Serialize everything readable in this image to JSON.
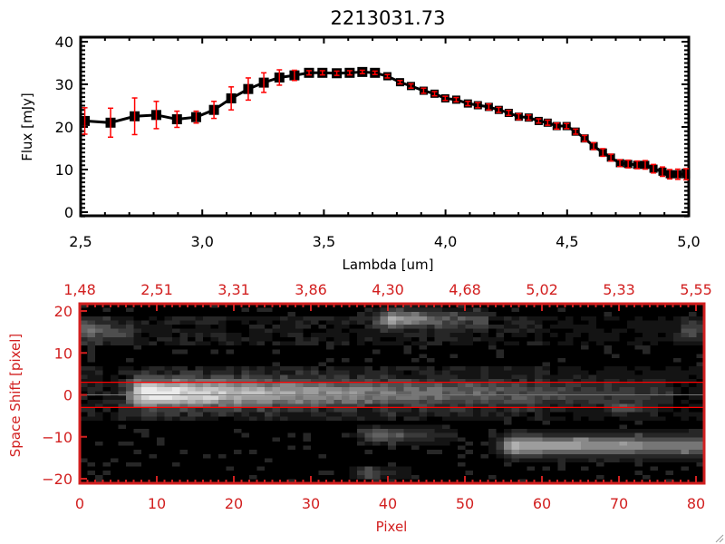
{
  "chart_data": [
    {
      "type": "line",
      "title": "2213031.73",
      "xlabel": "Lambda [um]",
      "ylabel": "Flux [mJy]",
      "xlim": [
        2.5,
        5.0
      ],
      "ylim": [
        -1,
        41
      ],
      "xticks": [
        "2.5",
        "3.0",
        "3.5",
        "4.0",
        "4.5",
        "5.0"
      ],
      "xtick_values": [
        2.5,
        3.0,
        3.5,
        4.0,
        4.5,
        5.0
      ],
      "yticks": [
        "0",
        "10",
        "20",
        "30",
        "40"
      ],
      "ytick_values": [
        0,
        10,
        20,
        30,
        40
      ],
      "series": [
        {
          "name": "flux",
          "x": [
            2.517,
            2.623,
            2.722,
            2.811,
            2.896,
            2.975,
            3.048,
            3.119,
            3.189,
            3.253,
            3.317,
            3.379,
            3.439,
            3.494,
            3.553,
            3.606,
            3.658,
            3.71,
            3.761,
            3.813,
            3.858,
            3.91,
            3.955,
            3.999,
            4.044,
            4.092,
            4.133,
            4.178,
            4.219,
            4.26,
            4.301,
            4.342,
            4.383,
            4.42,
            4.457,
            4.498,
            4.535,
            4.572,
            4.609,
            4.647,
            4.68,
            4.717,
            4.751,
            4.788,
            4.821,
            4.855,
            4.892,
            4.922,
            4.955,
            4.989
          ],
          "y": [
            21.4,
            21.0,
            22.5,
            22.8,
            21.8,
            22.3,
            24.0,
            26.7,
            28.9,
            30.4,
            31.6,
            32.1,
            32.7,
            32.7,
            32.6,
            32.7,
            32.9,
            32.7,
            31.9,
            30.5,
            29.6,
            28.5,
            27.8,
            26.7,
            26.4,
            25.5,
            25.1,
            24.7,
            24.0,
            23.3,
            22.4,
            22.2,
            21.4,
            21.0,
            20.2,
            20.2,
            18.9,
            17.3,
            15.5,
            14.0,
            12.8,
            11.5,
            11.3,
            11.1,
            11.1,
            10.2,
            9.5,
            8.9,
            8.9,
            8.9
          ],
          "err": [
            3.1,
            3.4,
            4.3,
            3.2,
            1.9,
            1.4,
            2.0,
            2.7,
            2.6,
            2.3,
            1.8,
            1.2,
            0.5,
            0.5,
            0.5,
            0.5,
            0.4,
            0.4,
            0.4,
            0.4,
            0.5,
            0.6,
            0.5,
            0.5,
            0.5,
            0.5,
            0.6,
            0.7,
            0.6,
            0.6,
            0.7,
            0.6,
            0.5,
            0.6,
            0.7,
            0.6,
            0.6,
            0.7,
            0.8,
            0.9,
            0.8,
            0.8,
            0.9,
            0.9,
            1.0,
            1.0,
            1.1,
            1.1,
            1.2,
            1.3
          ],
          "line_color": "#000000",
          "error_color": "#ff0000"
        }
      ]
    },
    {
      "type": "heatmap",
      "xlabel": "Pixel",
      "ylabel": "Space Shift [pixel]",
      "xlim": [
        0,
        81
      ],
      "ylim": [
        -21,
        21
      ],
      "xticks": [
        "0",
        "10",
        "20",
        "30",
        "40",
        "50",
        "60",
        "70",
        "80"
      ],
      "xtick_values": [
        0,
        10,
        20,
        30,
        40,
        50,
        60,
        70,
        80
      ],
      "top_xticks": [
        "1.48",
        "2.51",
        "3.31",
        "3.86",
        "4.30",
        "4.68",
        "5.02",
        "5.33",
        "5.55"
      ],
      "yticks": [
        "-20",
        "-10",
        "0",
        "10",
        "20"
      ],
      "ytick_values": [
        -20,
        -10,
        0,
        10,
        20
      ],
      "aperture_lines": [
        3,
        -3
      ],
      "center_line": 0,
      "axis_color": "#d22020",
      "sources": [
        {
          "x": 8,
          "y": 0,
          "peak": 1.0,
          "tail": 35,
          "sy": 2.3,
          "start": 4,
          "end": 76
        },
        {
          "x": 40,
          "y": 18,
          "peak": 0.6,
          "tail": 10,
          "sy": 1.5,
          "start": 36,
          "end": 52
        },
        {
          "x": 56,
          "y": -12.5,
          "peak": 0.75,
          "tail": 60,
          "sy": 1.6,
          "start": 52,
          "end": 81
        },
        {
          "x": 38,
          "y": -10,
          "peak": 0.45,
          "tail": 8,
          "sy": 1.3,
          "start": 35,
          "end": 48
        },
        {
          "x": 1,
          "y": 15,
          "peak": 0.4,
          "tail": 5,
          "sy": 1.5,
          "start": 0,
          "end": 6
        },
        {
          "x": 37,
          "y": -19,
          "peak": 0.3,
          "tail": 4,
          "sy": 1.0,
          "start": 34,
          "end": 42
        },
        {
          "x": 79,
          "y": 15,
          "peak": 0.3,
          "tail": 3,
          "sy": 1.5,
          "start": 75,
          "end": 81
        },
        {
          "x": 70,
          "y": -3.5,
          "peak": 0.25,
          "tail": 4,
          "sy": 1.0,
          "start": 67,
          "end": 74
        }
      ]
    }
  ]
}
